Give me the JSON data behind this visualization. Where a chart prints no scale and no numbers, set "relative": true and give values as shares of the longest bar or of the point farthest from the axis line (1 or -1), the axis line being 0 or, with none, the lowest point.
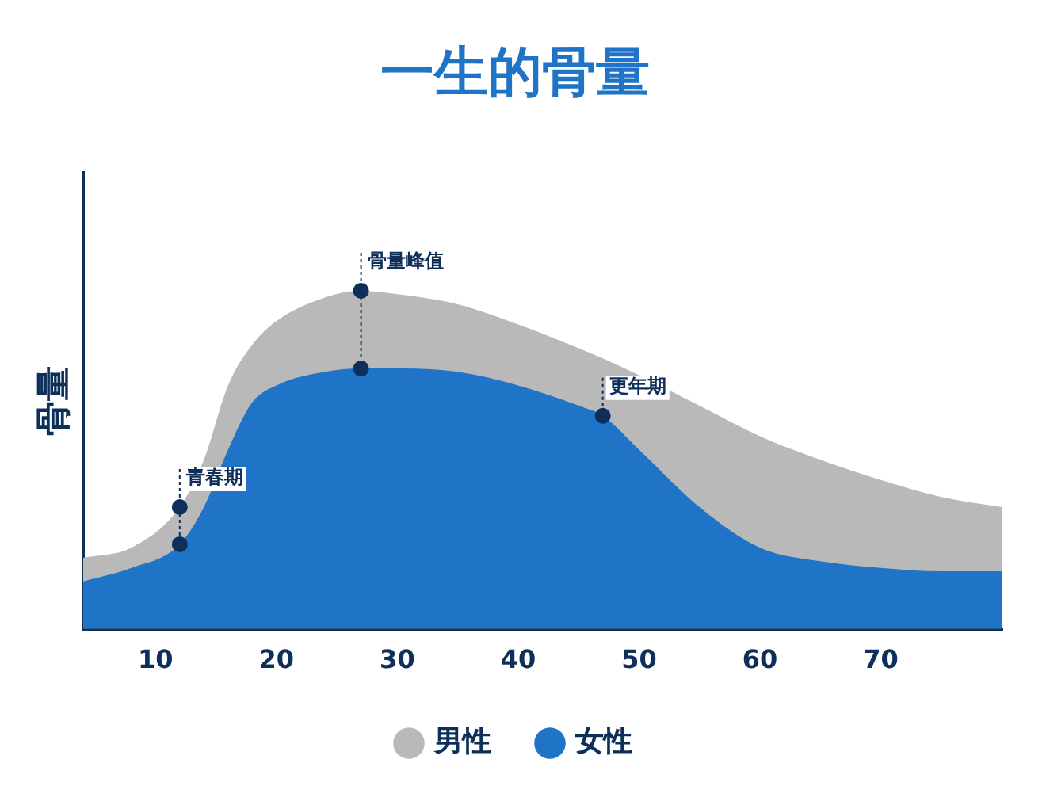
{
  "chart_data": {
    "type": "area",
    "title": "一生的骨量",
    "ylabel": "骨量",
    "relative": true,
    "x": [
      4,
      8,
      12,
      14,
      16,
      18,
      20,
      24,
      27,
      30,
      35,
      40,
      45,
      47,
      50,
      55,
      60,
      65,
      70,
      75,
      80
    ],
    "xlim": [
      4,
      80
    ],
    "xticks": [
      10,
      20,
      30,
      40,
      50,
      60,
      70
    ],
    "series": [
      {
        "name": "男性",
        "color": "#b9b9b9",
        "values": [
          0.21,
          0.24,
          0.36,
          0.5,
          0.72,
          0.84,
          0.91,
          0.98,
          1,
          0.99,
          0.96,
          0.9,
          0.83,
          0.8,
          0.75,
          0.66,
          0.57,
          0.5,
          0.44,
          0.39,
          0.36
        ]
      },
      {
        "name": "女性",
        "color": "#1f74c8",
        "values": [
          0.14,
          0.18,
          0.25,
          0.36,
          0.53,
          0.67,
          0.72,
          0.76,
          0.77,
          0.77,
          0.76,
          0.72,
          0.66,
          0.63,
          0.53,
          0.36,
          0.24,
          0.2,
          0.18,
          0.17,
          0.17
        ]
      },
      {
        "type": "scatter",
        "color": "#0d2f5a",
        "x": [
          12,
          12,
          27,
          27,
          47
        ],
        "values": [
          0.36,
          0.25,
          1,
          0.77,
          0.63
        ]
      }
    ],
    "annotations": [
      {
        "text": "青春期",
        "x": 12,
        "y": 0.36
      },
      {
        "text": "骨量峰值",
        "x": 27,
        "y": 1
      },
      {
        "text": "更年期",
        "x": 47,
        "y": 0.63
      }
    ],
    "legend": "bottom",
    "grid": false
  }
}
